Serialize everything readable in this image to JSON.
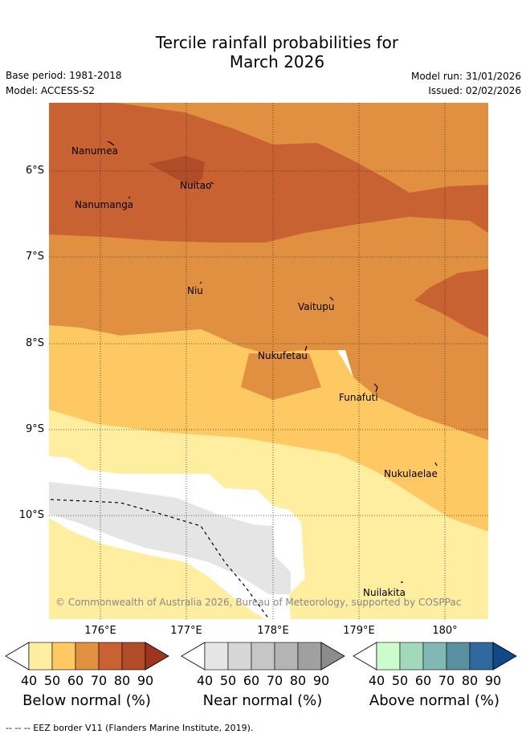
{
  "title": {
    "line1": "Tercile rainfall probabilities for",
    "line2": "March 2026"
  },
  "meta": {
    "base_period": "Base period: 1981-2018",
    "model": "Model: ACCESS-S2",
    "model_run": "Model run: 31/01/2026",
    "issued": "Issued: 02/02/2026"
  },
  "map": {
    "lat_labels": [
      "6°S",
      "7°S",
      "8°S",
      "9°S",
      "10°S"
    ],
    "lon_labels": [
      "176°E",
      "177°E",
      "178°E",
      "179°E",
      "180°"
    ],
    "places": [
      "Nanumea",
      "Nuitao",
      "Nanumanga",
      "Niu",
      "Vaitupu",
      "Nukufetau",
      "Funafuti",
      "Nukulaelae",
      "Nuilakita"
    ],
    "credit": "© Commonwealth of Australia 2026, Bureau of Meteorology, supported by COSPPac"
  },
  "colorbars": [
    {
      "label": "Below normal (%)",
      "ticks": [
        "40",
        "50",
        "60",
        "70",
        "80",
        "90"
      ],
      "colors": [
        "#ffeda0",
        "#fec962",
        "#e09040",
        "#c96232",
        "#b14c28",
        "#9c3420"
      ]
    },
    {
      "label": "Near normal (%)",
      "ticks": [
        "40",
        "50",
        "60",
        "70",
        "80",
        "90"
      ],
      "colors": [
        "#e5e5e5",
        "#d6d6d6",
        "#c6c6c6",
        "#b4b4b4",
        "#a0a0a0",
        "#8c8c8c"
      ]
    },
    {
      "label": "Above normal (%)",
      "ticks": [
        "40",
        "50",
        "60",
        "70",
        "80",
        "90"
      ],
      "colors": [
        "#ccfccc",
        "#a2d8bc",
        "#80b8b4",
        "#5890a0",
        "#3068a0",
        "#104888"
      ]
    }
  ],
  "legend": {
    "eez": "--  --  -- EEZ border V11 (Flanders Marine Institute, 2019)."
  },
  "colors": {
    "below_40_50": "#ffeda0",
    "below_50_60": "#fec962",
    "below_60_70": "#e09040",
    "below_70_80": "#c96232",
    "below_80_90": "#b14c28",
    "near_40_50": "#e5e5e5"
  }
}
